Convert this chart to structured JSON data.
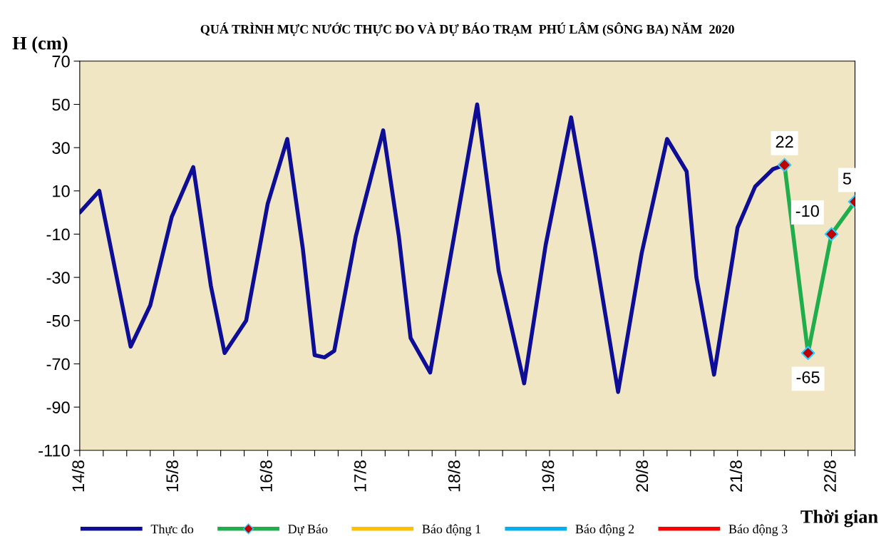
{
  "chart_data": {
    "type": "line",
    "title": "QUÁ TRÌNH MỰC NƯỚC THỰC ĐO VÀ DỰ BÁO TRẠM  PHÚ LÂM (SÔNG BA) NĂM  2020",
    "ylabel": "H (cm)",
    "xlabel": "Thời gian",
    "series": [
      {
        "name": "Thực đo",
        "color": "#0d0d96",
        "marker": "none",
        "x": [
          "2020-08-14T00:00",
          "2020-08-14T05:00",
          "2020-08-14T13:00",
          "2020-08-14T18:00",
          "2020-08-14T23:30",
          "2020-08-15T05:00",
          "2020-08-15T09:30",
          "2020-08-15T13:00",
          "2020-08-15T18:30",
          "2020-08-16T00:00",
          "2020-08-16T05:00",
          "2020-08-16T09:00",
          "2020-08-16T12:00",
          "2020-08-16T14:30",
          "2020-08-16T17:00",
          "2020-08-16T22:30",
          "2020-08-17T05:30",
          "2020-08-17T09:30",
          "2020-08-17T12:30",
          "2020-08-17T17:30",
          "2020-08-18T00:00",
          "2020-08-18T05:30",
          "2020-08-18T11:00",
          "2020-08-18T17:30",
          "2020-08-18T23:00",
          "2020-08-19T05:30",
          "2020-08-19T11:30",
          "2020-08-19T17:30",
          "2020-08-19T23:30",
          "2020-08-20T06:00",
          "2020-08-20T11:00",
          "2020-08-20T13:30",
          "2020-08-20T18:00",
          "2020-08-21T00:00",
          "2020-08-21T04:30",
          "2020-08-21T09:00",
          "2020-08-21T12:00"
        ],
        "values": [
          0,
          10,
          -62,
          -43,
          -2,
          21,
          -34,
          -65,
          -50,
          4,
          34,
          -17,
          -66,
          -67,
          -64,
          -11,
          38,
          -11,
          -58,
          -74,
          -7,
          50,
          -27,
          -79,
          -15,
          44,
          -17,
          -83,
          -19,
          34,
          19,
          -30,
          -75,
          -7,
          12,
          20,
          22
        ]
      },
      {
        "name": "Dự Báo",
        "color": "#1fae4b",
        "marker": "diamond",
        "colors": [
          "#c00000",
          "#c00000",
          "#c00000",
          "#c00000"
        ],
        "data_labels": true,
        "x": [
          "2020-08-21T12:00",
          "2020-08-21T18:00",
          "2020-08-22T00:00",
          "2020-08-22T06:00"
        ],
        "values": [
          22,
          -65,
          -10,
          5
        ]
      },
      {
        "name": "Báo động 1",
        "color": "#ffc000",
        "marker": "none"
      },
      {
        "name": "Báo động 2",
        "color": "#00b0f0",
        "marker": "none"
      },
      {
        "name": "Báo động 3",
        "color": "#ff0000",
        "marker": "none"
      }
    ],
    "xlim": [
      "2020-08-14T00:00",
      "2020-08-22T06:00"
    ],
    "xticks": [
      {
        "value": "2020-08-14T00:00",
        "label": "14/8"
      },
      {
        "value": "2020-08-14T06:00",
        "label": null
      },
      {
        "value": "2020-08-14T12:00",
        "label": null
      },
      {
        "value": "2020-08-14T18:00",
        "label": null
      },
      {
        "value": "2020-08-15T00:00",
        "label": "15/8"
      },
      {
        "value": "2020-08-15T06:00",
        "label": null
      },
      {
        "value": "2020-08-15T12:00",
        "label": null
      },
      {
        "value": "2020-08-15T18:00",
        "label": null
      },
      {
        "value": "2020-08-16T00:00",
        "label": "16/8"
      },
      {
        "value": "2020-08-16T06:00",
        "label": null
      },
      {
        "value": "2020-08-16T12:00",
        "label": null
      },
      {
        "value": "2020-08-16T18:00",
        "label": null
      },
      {
        "value": "2020-08-17T00:00",
        "label": "17/8"
      },
      {
        "value": "2020-08-17T06:00",
        "label": null
      },
      {
        "value": "2020-08-17T12:00",
        "label": null
      },
      {
        "value": "2020-08-17T18:00",
        "label": null
      },
      {
        "value": "2020-08-18T00:00",
        "label": "18/8"
      },
      {
        "value": "2020-08-18T06:00",
        "label": null
      },
      {
        "value": "2020-08-18T12:00",
        "label": null
      },
      {
        "value": "2020-08-18T18:00",
        "label": null
      },
      {
        "value": "2020-08-19T00:00",
        "label": "19/8"
      },
      {
        "value": "2020-08-19T06:00",
        "label": null
      },
      {
        "value": "2020-08-19T12:00",
        "label": null
      },
      {
        "value": "2020-08-19T18:00",
        "label": null
      },
      {
        "value": "2020-08-20T00:00",
        "label": "20/8"
      },
      {
        "value": "2020-08-20T06:00",
        "label": null
      },
      {
        "value": "2020-08-20T12:00",
        "label": null
      },
      {
        "value": "2020-08-20T18:00",
        "label": null
      },
      {
        "value": "2020-08-21T00:00",
        "label": "21/8"
      },
      {
        "value": "2020-08-21T06:00",
        "label": null
      },
      {
        "value": "2020-08-21T12:00",
        "label": null
      },
      {
        "value": "2020-08-21T18:00",
        "label": null
      },
      {
        "value": "2020-08-22T00:00",
        "label": "22/8"
      },
      {
        "value": "2020-08-22T06:00",
        "label": null
      }
    ],
    "ylim": [
      -110,
      70
    ],
    "yticks": [
      -110,
      -90,
      -70,
      -50,
      -30,
      -10,
      10,
      30,
      50,
      70
    ],
    "grid": false,
    "legend": "bottom",
    "line_style": "solid"
  }
}
